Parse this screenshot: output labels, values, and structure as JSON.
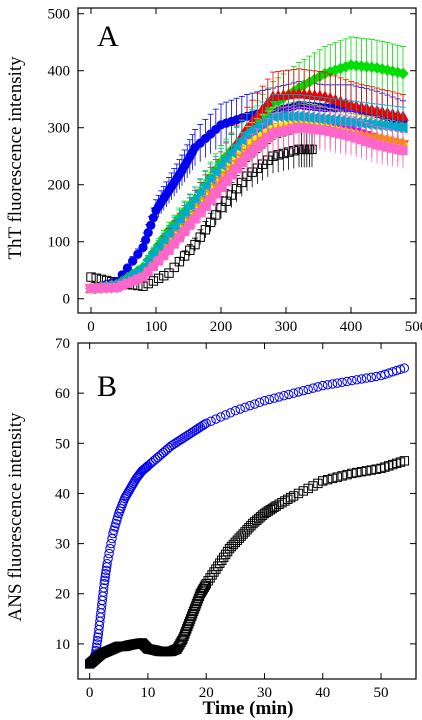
{
  "chart_data": [
    {
      "type": "scatter",
      "panel_label": "A",
      "ylabel": "ThT fluorescence intensity",
      "xlabel": "",
      "xlim": [
        -20,
        500
      ],
      "ylim": [
        -25,
        510
      ],
      "x_ticks": [
        0,
        100,
        200,
        300,
        400,
        500
      ],
      "y_ticks": [
        0,
        100,
        200,
        300,
        400,
        500
      ],
      "grid": false,
      "error_bars": true,
      "series": [
        {
          "marker": "square-open",
          "color": "#000000",
          "x": [
            0,
            40,
            80,
            120,
            160,
            200,
            240,
            280,
            320,
            340
          ],
          "y": [
            38,
            28,
            22,
            45,
            95,
            160,
            215,
            250,
            262,
            262
          ]
        },
        {
          "marker": "circle-filled",
          "color": "#0000ee",
          "x": [
            0,
            40,
            80,
            100,
            120,
            140,
            160,
            200,
            240,
            280,
            320,
            360,
            400,
            440,
            480
          ],
          "y": [
            18,
            30,
            90,
            155,
            190,
            225,
            265,
            305,
            320,
            330,
            340,
            335,
            335,
            325,
            310
          ]
        },
        {
          "marker": "diamond-filled",
          "color": "#00dd00",
          "x": [
            0,
            40,
            80,
            120,
            160,
            200,
            240,
            280,
            320,
            360,
            400,
            440,
            480
          ],
          "y": [
            18,
            25,
            55,
            120,
            175,
            240,
            290,
            340,
            370,
            395,
            410,
            405,
            395
          ]
        },
        {
          "marker": "triangle-filled",
          "color": "#ee0000",
          "x": [
            0,
            40,
            80,
            120,
            160,
            200,
            240,
            280,
            320,
            360,
            400,
            440,
            480
          ],
          "y": [
            18,
            25,
            50,
            110,
            170,
            230,
            300,
            355,
            360,
            355,
            340,
            330,
            320
          ]
        },
        {
          "marker": "triangle-down-filled",
          "color": "#ee00ee",
          "x": [
            0,
            40,
            80,
            120,
            160,
            200,
            240,
            280,
            320,
            360,
            400,
            440,
            480
          ],
          "y": [
            18,
            20,
            40,
            90,
            150,
            200,
            270,
            300,
            300,
            300,
            295,
            280,
            270
          ]
        },
        {
          "marker": "diamond-filled",
          "color": "#ffee00",
          "x": [
            0,
            40,
            80,
            120,
            160,
            200,
            240,
            280,
            320,
            360,
            400,
            440,
            480
          ],
          "y": [
            18,
            22,
            45,
            100,
            160,
            220,
            270,
            300,
            310,
            300,
            290,
            280,
            270
          ]
        },
        {
          "marker": "star",
          "color": "#ff8c00",
          "x": [
            0,
            40,
            80,
            120,
            160,
            200,
            240,
            280,
            320,
            360,
            400,
            440,
            480
          ],
          "y": [
            18,
            22,
            42,
            95,
            150,
            210,
            260,
            295,
            305,
            300,
            290,
            285,
            275
          ]
        },
        {
          "marker": "triangle-left-filled",
          "color": "#00aacc",
          "x": [
            0,
            40,
            80,
            120,
            160,
            200,
            240,
            280,
            320,
            360,
            400,
            440,
            480
          ],
          "y": [
            18,
            25,
            55,
            115,
            175,
            235,
            290,
            320,
            320,
            315,
            310,
            305,
            300
          ]
        },
        {
          "marker": "square-filled",
          "color": "#ff66cc",
          "x": [
            0,
            40,
            80,
            120,
            160,
            200,
            240,
            280,
            320,
            360,
            400,
            440,
            480
          ],
          "y": [
            18,
            20,
            38,
            85,
            140,
            195,
            250,
            290,
            300,
            295,
            285,
            270,
            260
          ]
        }
      ]
    },
    {
      "type": "scatter",
      "panel_label": "B",
      "ylabel": "ANS fluorescence intensity",
      "xlabel": "Time (min)",
      "xlim": [
        -2,
        56
      ],
      "ylim": [
        3,
        70
      ],
      "x_ticks": [
        0,
        10,
        20,
        30,
        40,
        50
      ],
      "y_ticks": [
        10,
        20,
        30,
        40,
        50,
        60,
        70
      ],
      "grid": false,
      "series": [
        {
          "marker": "circle-open",
          "color": "#0000ee",
          "x": [
            0,
            0.5,
            1,
            1.5,
            2,
            2.5,
            3,
            4,
            5,
            6,
            7,
            8,
            9,
            10,
            12,
            14,
            16,
            18,
            20,
            25,
            30,
            35,
            40,
            45,
            50,
            54
          ],
          "y": [
            6,
            6.5,
            8,
            12,
            17,
            22,
            26,
            32,
            36,
            39,
            41,
            43,
            44.5,
            45.5,
            47.5,
            49.5,
            51,
            52.5,
            54,
            56.5,
            58.5,
            60,
            61.5,
            62.5,
            63.5,
            65
          ]
        },
        {
          "marker": "square-open",
          "color": "#000000",
          "x": [
            0,
            1,
            2,
            3,
            4,
            5,
            6,
            7,
            8,
            9,
            10,
            11,
            12,
            13,
            14,
            15,
            16,
            17,
            18,
            19,
            20,
            22,
            24,
            26,
            28,
            30,
            32,
            35,
            40,
            45,
            50,
            54
          ],
          "y": [
            6,
            7,
            8,
            8.5,
            9,
            9.5,
            9.5,
            9.8,
            10,
            10.2,
            9,
            8.8,
            8.5,
            8.5,
            8.5,
            9,
            11,
            14,
            17,
            20,
            22,
            25.5,
            29,
            31.5,
            34,
            36,
            37.5,
            39.5,
            42.5,
            44,
            45,
            46.5
          ]
        }
      ]
    }
  ]
}
